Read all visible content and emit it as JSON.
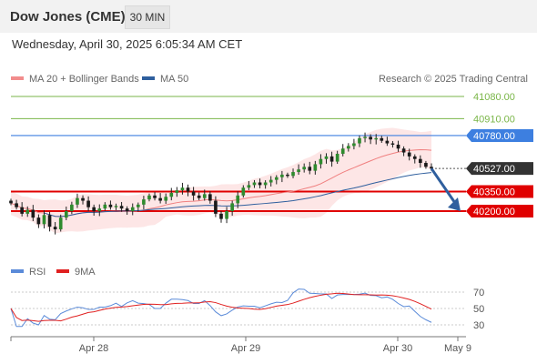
{
  "header": {
    "title": "Dow Jones (CME)",
    "interval": "30 MIN"
  },
  "timestamp": "Wednesday, April 30, 2025 6:05:34 AM CET",
  "copyright": "Research © 2025 Trading Central",
  "legend_main": [
    {
      "label": "MA 20 + Bollinger Bands",
      "color": "#f28c8c"
    },
    {
      "label": "MA 50",
      "color": "#2f5f9e"
    }
  ],
  "legend_rsi": [
    {
      "label": "RSI",
      "color": "#5b8bd9"
    },
    {
      "label": "9MA",
      "color": "#e02020"
    }
  ],
  "levels": [
    {
      "value": 41080,
      "label": "41080.00",
      "kind": "resistance",
      "color": "#7ab648"
    },
    {
      "value": 40910,
      "label": "40910.00",
      "kind": "resistance",
      "color": "#7ab648"
    },
    {
      "value": 40780,
      "label": "40780.00",
      "kind": "pivot",
      "color": "#3d7fe0"
    },
    {
      "value": 40527,
      "label": "40527.00",
      "kind": "last",
      "color": "#333333"
    },
    {
      "value": 40350,
      "label": "40350.00",
      "kind": "support",
      "color": "#e00000"
    },
    {
      "value": 40200,
      "label": "40200.00",
      "kind": "support",
      "color": "#e00000"
    }
  ],
  "x_axis": {
    "labels": [
      "Apr 28",
      "Apr 29",
      "Apr 30",
      "May 9"
    ]
  },
  "rsi_axis": {
    "ticks": [
      70,
      50,
      30
    ]
  },
  "chart_data": {
    "type": "candlestick",
    "title": "Dow Jones (CME)",
    "interval": "30 MIN",
    "last_price": 40527,
    "ylim": [
      40000,
      41200
    ],
    "forecast_arrow": {
      "from": 40527,
      "to": 40200,
      "direction": "down"
    },
    "rsi_ylim": [
      20,
      80
    ],
    "close_series": [
      40260,
      40230,
      40180,
      40210,
      40150,
      40100,
      40170,
      40080,
      40060,
      40150,
      40200,
      40250,
      40300,
      40280,
      40230,
      40200,
      40220,
      40250,
      40230,
      40240,
      40220,
      40200,
      40230,
      40250,
      40290,
      40320,
      40300,
      40280,
      40310,
      40340,
      40360,
      40380,
      40350,
      40320,
      40300,
      40330,
      40280,
      40180,
      40140,
      40200,
      40260,
      40320,
      40380,
      40400,
      40420,
      40400,
      40420,
      40440,
      40460,
      40480,
      40470,
      40500,
      40520,
      40540,
      40510,
      40560,
      40600,
      40620,
      40580,
      40640,
      40680,
      40700,
      40720,
      40760,
      40770,
      40750,
      40760,
      40740,
      40720,
      40710,
      40680,
      40650,
      40620,
      40600,
      40570,
      40540,
      40527
    ]
  }
}
